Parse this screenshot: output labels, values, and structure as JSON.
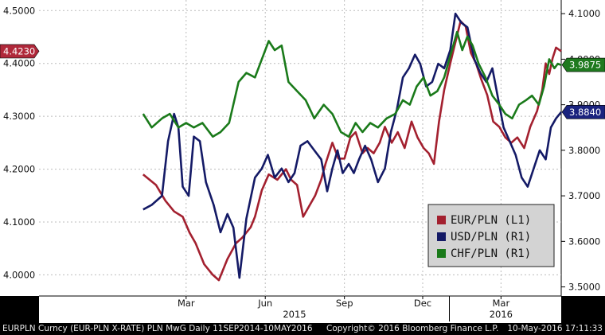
{
  "chart_data": {
    "type": "line",
    "title": "",
    "xlabel": "",
    "ylabel": "",
    "left_axis": {
      "ticks": [
        "4.5000",
        "4.4000",
        "4.3000",
        "4.2000",
        "4.1000",
        "4.0000"
      ],
      "range": [
        3.96,
        4.52
      ]
    },
    "right_axis": {
      "ticks": [
        "4.1000",
        "4.0000",
        "3.9000",
        "3.8000",
        "3.7000",
        "3.6000",
        "3.5000"
      ],
      "range": [
        3.48,
        4.13
      ]
    },
    "x_range": [
      "2014-09-11",
      "2016-05-10"
    ],
    "x_ticks": [
      {
        "label": "Mar",
        "date": "2015-03-01"
      },
      {
        "label": "Jun",
        "date": "2015-06-01"
      },
      {
        "label": "Sep",
        "date": "2015-09-01"
      },
      {
        "label": "Dec",
        "date": "2015-12-01"
      },
      {
        "label": "Mar",
        "date": "2016-03-01"
      }
    ],
    "year_labels": [
      {
        "label": "2015",
        "date": "2015-07-05"
      },
      {
        "label": "2016",
        "date": "2016-03-01"
      }
    ],
    "year_divider": "2016-01-01",
    "grid": true,
    "legend_position": "bottom-right",
    "last_values": {
      "eur": {
        "label": "4.4230",
        "color": "#b0283a"
      },
      "chf": {
        "label": "3.9875",
        "color": "#1f7a1f"
      },
      "usd": {
        "label": "3.8840",
        "color": "#1a237e"
      }
    },
    "series": [
      {
        "key": "eur",
        "name": "EUR/PLN (L1)",
        "axis": "left",
        "color": "#a3202f",
        "points": [
          [
            "2015-01-10",
            4.19
          ],
          [
            "2015-01-25",
            4.17
          ],
          [
            "2015-02-05",
            4.14
          ],
          [
            "2015-02-15",
            4.12
          ],
          [
            "2015-02-25",
            4.11
          ],
          [
            "2015-03-05",
            4.08
          ],
          [
            "2015-03-12",
            4.06
          ],
          [
            "2015-03-22",
            4.02
          ],
          [
            "2015-04-01",
            4.0
          ],
          [
            "2015-04-08",
            3.99
          ],
          [
            "2015-04-18",
            4.03
          ],
          [
            "2015-04-28",
            4.06
          ],
          [
            "2015-05-05",
            4.07
          ],
          [
            "2015-05-15",
            4.09
          ],
          [
            "2015-05-20",
            4.11
          ],
          [
            "2015-05-28",
            4.16
          ],
          [
            "2015-06-05",
            4.19
          ],
          [
            "2015-06-15",
            4.18
          ],
          [
            "2015-06-25",
            4.2
          ],
          [
            "2015-07-01",
            4.18
          ],
          [
            "2015-07-08",
            4.17
          ],
          [
            "2015-07-15",
            4.11
          ],
          [
            "2015-07-22",
            4.13
          ],
          [
            "2015-07-29",
            4.15
          ],
          [
            "2015-08-05",
            4.18
          ],
          [
            "2015-08-10",
            4.21
          ],
          [
            "2015-08-18",
            4.25
          ],
          [
            "2015-08-25",
            4.22
          ],
          [
            "2015-09-01",
            4.22
          ],
          [
            "2015-09-08",
            4.26
          ],
          [
            "2015-09-14",
            4.27
          ],
          [
            "2015-09-22",
            4.23
          ],
          [
            "2015-09-28",
            4.24
          ],
          [
            "2015-10-05",
            4.23
          ],
          [
            "2015-10-12",
            4.25
          ],
          [
            "2015-10-18",
            4.28
          ],
          [
            "2015-10-26",
            4.25
          ],
          [
            "2015-11-02",
            4.27
          ],
          [
            "2015-11-10",
            4.24
          ],
          [
            "2015-11-18",
            4.29
          ],
          [
            "2015-11-25",
            4.26
          ],
          [
            "2015-12-02",
            4.24
          ],
          [
            "2015-12-08",
            4.23
          ],
          [
            "2015-12-14",
            4.21
          ],
          [
            "2015-12-20",
            4.29
          ],
          [
            "2015-12-26",
            4.35
          ],
          [
            "2016-01-02",
            4.4
          ],
          [
            "2016-01-08",
            4.44
          ],
          [
            "2016-01-14",
            4.48
          ],
          [
            "2016-01-20",
            4.47
          ],
          [
            "2016-01-26",
            4.42
          ],
          [
            "2016-02-01",
            4.4
          ],
          [
            "2016-02-07",
            4.37
          ],
          [
            "2016-02-14",
            4.34
          ],
          [
            "2016-02-21",
            4.29
          ],
          [
            "2016-02-28",
            4.28
          ],
          [
            "2016-03-06",
            4.26
          ],
          [
            "2016-03-13",
            4.25
          ],
          [
            "2016-03-20",
            4.26
          ],
          [
            "2016-03-28",
            4.24
          ],
          [
            "2016-04-04",
            4.28
          ],
          [
            "2016-04-12",
            4.31
          ],
          [
            "2016-04-18",
            4.35
          ],
          [
            "2016-04-22",
            4.4
          ],
          [
            "2016-04-26",
            4.38
          ],
          [
            "2016-04-30",
            4.41
          ],
          [
            "2016-05-04",
            4.43
          ],
          [
            "2016-05-10",
            4.423
          ]
        ]
      },
      {
        "key": "usd",
        "name": "USD/PLN (R1)",
        "axis": "right",
        "color": "#141a66",
        "points": [
          [
            "2015-01-10",
            3.67
          ],
          [
            "2015-01-20",
            3.68
          ],
          [
            "2015-02-01",
            3.7
          ],
          [
            "2015-02-08",
            3.82
          ],
          [
            "2015-02-15",
            3.88
          ],
          [
            "2015-02-20",
            3.85
          ],
          [
            "2015-02-25",
            3.72
          ],
          [
            "2015-03-04",
            3.7
          ],
          [
            "2015-03-10",
            3.83
          ],
          [
            "2015-03-17",
            3.82
          ],
          [
            "2015-03-24",
            3.73
          ],
          [
            "2015-04-02",
            3.68
          ],
          [
            "2015-04-10",
            3.62
          ],
          [
            "2015-04-18",
            3.66
          ],
          [
            "2015-04-25",
            3.63
          ],
          [
            "2015-05-02",
            3.52
          ],
          [
            "2015-05-10",
            3.65
          ],
          [
            "2015-05-20",
            3.74
          ],
          [
            "2015-05-28",
            3.76
          ],
          [
            "2015-06-04",
            3.79
          ],
          [
            "2015-06-12",
            3.74
          ],
          [
            "2015-06-20",
            3.76
          ],
          [
            "2015-06-28",
            3.73
          ],
          [
            "2015-07-05",
            3.75
          ],
          [
            "2015-07-12",
            3.81
          ],
          [
            "2015-07-20",
            3.82
          ],
          [
            "2015-07-28",
            3.8
          ],
          [
            "2015-08-05",
            3.78
          ],
          [
            "2015-08-12",
            3.71
          ],
          [
            "2015-08-18",
            3.76
          ],
          [
            "2015-08-24",
            3.8
          ],
          [
            "2015-08-30",
            3.75
          ],
          [
            "2015-09-06",
            3.77
          ],
          [
            "2015-09-12",
            3.75
          ],
          [
            "2015-09-18",
            3.78
          ],
          [
            "2015-09-25",
            3.81
          ],
          [
            "2015-10-02",
            3.78
          ],
          [
            "2015-10-10",
            3.73
          ],
          [
            "2015-10-18",
            3.76
          ],
          [
            "2015-10-25",
            3.84
          ],
          [
            "2015-11-01",
            3.89
          ],
          [
            "2015-11-08",
            3.96
          ],
          [
            "2015-11-15",
            3.98
          ],
          [
            "2015-11-22",
            4.01
          ],
          [
            "2015-11-28",
            3.99
          ],
          [
            "2015-12-05",
            3.94
          ],
          [
            "2015-12-12",
            3.95
          ],
          [
            "2015-12-19",
            3.99
          ],
          [
            "2015-12-26",
            3.98
          ],
          [
            "2016-01-02",
            4.02
          ],
          [
            "2016-01-08",
            4.1
          ],
          [
            "2016-01-15",
            4.08
          ],
          [
            "2016-01-22",
            4.07
          ],
          [
            "2016-01-30",
            4.0
          ],
          [
            "2016-02-06",
            3.97
          ],
          [
            "2016-02-13",
            3.95
          ],
          [
            "2016-02-20",
            3.98
          ],
          [
            "2016-02-27",
            3.91
          ],
          [
            "2016-03-04",
            3.85
          ],
          [
            "2016-03-11",
            3.82
          ],
          [
            "2016-03-18",
            3.79
          ],
          [
            "2016-03-25",
            3.74
          ],
          [
            "2016-04-01",
            3.72
          ],
          [
            "2016-04-08",
            3.76
          ],
          [
            "2016-04-15",
            3.8
          ],
          [
            "2016-04-22",
            3.78
          ],
          [
            "2016-04-28",
            3.85
          ],
          [
            "2016-05-04",
            3.87
          ],
          [
            "2016-05-10",
            3.884
          ]
        ]
      },
      {
        "key": "chf",
        "name": "CHF/PLN (R1)",
        "axis": "right",
        "color": "#1a7a1a",
        "points": [
          [
            "2015-01-10",
            3.88
          ],
          [
            "2015-01-20",
            3.85
          ],
          [
            "2015-02-01",
            3.87
          ],
          [
            "2015-02-10",
            3.88
          ],
          [
            "2015-02-20",
            3.85
          ],
          [
            "2015-03-01",
            3.86
          ],
          [
            "2015-03-10",
            3.85
          ],
          [
            "2015-03-20",
            3.86
          ],
          [
            "2015-04-01",
            3.83
          ],
          [
            "2015-04-10",
            3.84
          ],
          [
            "2015-04-20",
            3.86
          ],
          [
            "2015-05-01",
            3.95
          ],
          [
            "2015-05-10",
            3.97
          ],
          [
            "2015-05-20",
            3.96
          ],
          [
            "2015-05-28",
            4.0
          ],
          [
            "2015-06-05",
            4.04
          ],
          [
            "2015-06-12",
            4.02
          ],
          [
            "2015-06-20",
            4.03
          ],
          [
            "2015-06-28",
            3.95
          ],
          [
            "2015-07-08",
            3.93
          ],
          [
            "2015-07-18",
            3.91
          ],
          [
            "2015-07-28",
            3.87
          ],
          [
            "2015-08-08",
            3.9
          ],
          [
            "2015-08-18",
            3.88
          ],
          [
            "2015-08-28",
            3.84
          ],
          [
            "2015-09-06",
            3.83
          ],
          [
            "2015-09-14",
            3.86
          ],
          [
            "2015-09-22",
            3.84
          ],
          [
            "2015-10-01",
            3.86
          ],
          [
            "2015-10-10",
            3.85
          ],
          [
            "2015-10-20",
            3.87
          ],
          [
            "2015-10-30",
            3.88
          ],
          [
            "2015-11-08",
            3.91
          ],
          [
            "2015-11-16",
            3.9
          ],
          [
            "2015-11-24",
            3.94
          ],
          [
            "2015-12-02",
            3.96
          ],
          [
            "2015-12-10",
            3.92
          ],
          [
            "2015-12-18",
            3.93
          ],
          [
            "2015-12-26",
            3.96
          ],
          [
            "2016-01-04",
            4.02
          ],
          [
            "2016-01-10",
            4.06
          ],
          [
            "2016-01-16",
            4.02
          ],
          [
            "2016-01-22",
            4.05
          ],
          [
            "2016-01-28",
            4.03
          ],
          [
            "2016-02-04",
            3.99
          ],
          [
            "2016-02-12",
            3.96
          ],
          [
            "2016-02-20",
            3.92
          ],
          [
            "2016-02-28",
            3.9
          ],
          [
            "2016-03-06",
            3.88
          ],
          [
            "2016-03-14",
            3.87
          ],
          [
            "2016-03-22",
            3.9
          ],
          [
            "2016-03-30",
            3.91
          ],
          [
            "2016-04-06",
            3.92
          ],
          [
            "2016-04-14",
            3.9
          ],
          [
            "2016-04-20",
            3.94
          ],
          [
            "2016-04-26",
            4.0
          ],
          [
            "2016-05-02",
            3.98
          ],
          [
            "2016-05-06",
            3.99
          ],
          [
            "2016-05-10",
            3.9875
          ]
        ]
      }
    ]
  },
  "footer": {
    "left": "EURPLN Curncy (EUR-PLN X-RATE) PLN MwG  Daily 11SEP2014-10MAY2016",
    "center": "Copyright© 2016 Bloomberg Finance L.P.",
    "right": "10-May-2016 17:11:33"
  }
}
